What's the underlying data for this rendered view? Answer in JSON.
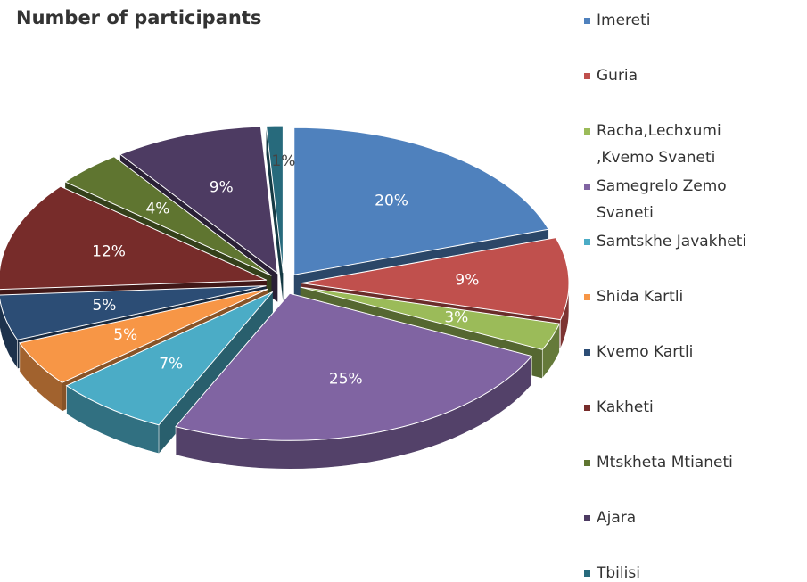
{
  "chart_data": {
    "type": "pie",
    "title": "Number of participants",
    "categories": [
      "Imereti",
      "Guria",
      "Racha,Lechxumi ,Kvemo Svaneti",
      "Samegrelo Zemo Svaneti",
      "Samtskhe Javakheti",
      "Shida Kartli",
      "Kvemo Kartli",
      "Kakheti",
      "Mtskheta Mtianeti",
      "Ajara",
      "Tbilisi"
    ],
    "values": [
      20,
      9,
      3,
      25,
      7,
      5,
      5,
      12,
      4,
      9,
      1
    ],
    "value_labels": [
      "20%",
      "9%",
      "3%",
      "25%",
      "7%",
      "5%",
      "5%",
      "12%",
      "4%",
      "9%",
      "1%"
    ],
    "colors": [
      "#4f81bd",
      "#c0504d",
      "#9bbb59",
      "#8064a2",
      "#4bacc6",
      "#f79646",
      "#2c4d75",
      "#772c2a",
      "#5f7530",
      "#4d3b62",
      "#276a7c"
    ],
    "legend": "right"
  }
}
